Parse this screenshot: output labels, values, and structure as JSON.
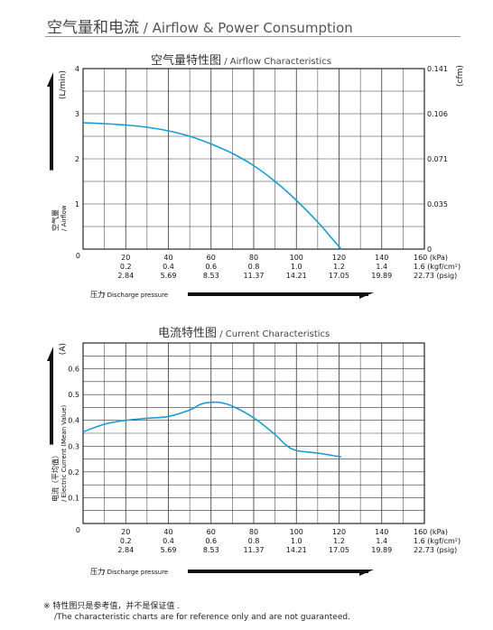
{
  "header": {
    "title_cn": "空气量和电流",
    "title_en": " / Airflow & Power Consumption"
  },
  "x_ticks": {
    "kpa": [
      "20",
      "40",
      "60",
      "80",
      "100",
      "120",
      "140",
      "160 (kPa)"
    ],
    "kgf": [
      "0.2",
      "0.4",
      "0.6",
      "0.8",
      "1.0",
      "1.2",
      "1.4",
      "1.6 (kgf/cm²)"
    ],
    "psig": [
      "2.84",
      "5.69",
      "8.53",
      "11.37",
      "14.21",
      "17.05",
      "19.89",
      "22.73 (psig)"
    ]
  },
  "xaxis_label": {
    "cn": "压力",
    "en": " / Discharge pressure"
  },
  "chart_data": [
    {
      "type": "line",
      "title_cn": "空气量特性图",
      "title_en": " / Airflow Characteristics",
      "xlabel": "压力 / Discharge pressure",
      "ylabel_cn": "空气量",
      "ylabel_en": "/ Airflow",
      "y_unit": "(L/min)",
      "y2_unit": "(cfm)",
      "xlim": [
        0,
        160
      ],
      "ylim": [
        0,
        4
      ],
      "y_ticks": [
        "1",
        "2",
        "3",
        "4"
      ],
      "y2_ticks": [
        "0.035",
        "0.071",
        "0.106",
        "0.141"
      ],
      "zero_label": "0",
      "y2_zero_label": "0",
      "grid": true,
      "color": "#1b9ad6",
      "series": [
        {
          "x": [
            0,
            10,
            20,
            30,
            40,
            50,
            60,
            70,
            80,
            90,
            100,
            110,
            117,
            121
          ],
          "y": [
            2.8,
            2.78,
            2.75,
            2.7,
            2.62,
            2.5,
            2.33,
            2.12,
            1.85,
            1.5,
            1.08,
            0.6,
            0.22,
            0.0
          ]
        }
      ]
    },
    {
      "type": "line",
      "title_cn": "电流特性图",
      "title_en": " / Current Characteristics",
      "xlabel": "压力 / Discharge pressure",
      "ylabel_cn": "电流（平均值）",
      "ylabel_en": "/ Electric Current (Mean Value)",
      "y_unit": "(A)",
      "xlim": [
        0,
        160
      ],
      "ylim": [
        0,
        0.7
      ],
      "y_ticks": [
        "0.1",
        "0.2",
        "0.3",
        "0.4",
        "0.5",
        "0.6"
      ],
      "zero_label": "0",
      "grid": true,
      "color": "#1b9ad6",
      "series": [
        {
          "x": [
            0,
            10,
            20,
            30,
            40,
            50,
            55,
            60,
            65,
            70,
            80,
            90,
            95,
            100,
            110,
            121
          ],
          "y": [
            0.355,
            0.385,
            0.4,
            0.408,
            0.415,
            0.44,
            0.462,
            0.47,
            0.468,
            0.455,
            0.41,
            0.345,
            0.305,
            0.283,
            0.273,
            0.258
          ]
        }
      ]
    }
  ],
  "note": {
    "line1": "※ 特性图只是参考值，并不是保证值 .",
    "line2": "/The characteristic charts are for reference only and are not guaranteed."
  }
}
